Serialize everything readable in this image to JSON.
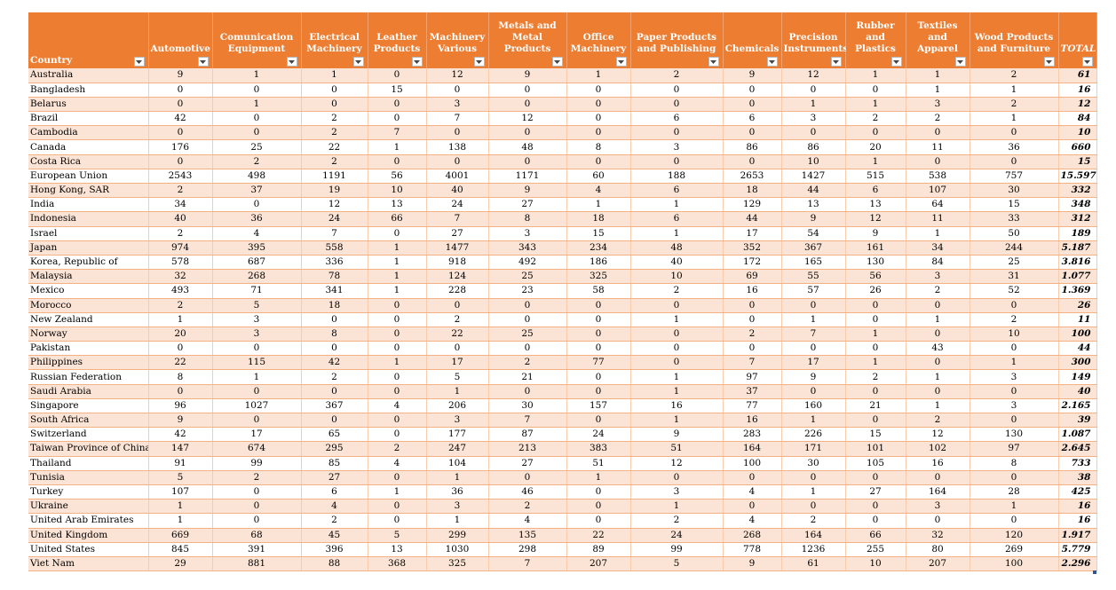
{
  "columns": [
    {
      "key": "country",
      "label": "Country"
    },
    {
      "key": "auto",
      "label": "Automotive"
    },
    {
      "key": "comm",
      "label": "Comunication Equipment"
    },
    {
      "key": "elec",
      "label": "Electrical Machinery"
    },
    {
      "key": "leather",
      "label": "Leather Products"
    },
    {
      "key": "mach",
      "label": "Machinery Various"
    },
    {
      "key": "metal",
      "label": "Metals and Metal Products"
    },
    {
      "key": "office",
      "label": "Office Machinery"
    },
    {
      "key": "paper",
      "label": "Paper Products and Publishing"
    },
    {
      "key": "chem",
      "label": "Chemicals"
    },
    {
      "key": "prec",
      "label": "Precision Instruments"
    },
    {
      "key": "rubber",
      "label": "Rubber and Plastics"
    },
    {
      "key": "textile",
      "label": "Textiles and Apparel"
    },
    {
      "key": "wood",
      "label": "Wood Products and Furniture"
    },
    {
      "key": "total",
      "label": "TOTAL"
    }
  ],
  "rows": [
    [
      "Australia",
      "9",
      "1",
      "1",
      "0",
      "12",
      "9",
      "1",
      "2",
      "9",
      "12",
      "1",
      "1",
      "2",
      "61"
    ],
    [
      "Bangladesh",
      "0",
      "0",
      "0",
      "15",
      "0",
      "0",
      "0",
      "0",
      "0",
      "0",
      "0",
      "1",
      "1",
      "16"
    ],
    [
      "Belarus",
      "0",
      "1",
      "0",
      "0",
      "3",
      "0",
      "0",
      "0",
      "0",
      "1",
      "1",
      "3",
      "2",
      "12"
    ],
    [
      "Brazil",
      "42",
      "0",
      "2",
      "0",
      "7",
      "12",
      "0",
      "6",
      "6",
      "3",
      "2",
      "2",
      "1",
      "84"
    ],
    [
      "Cambodia",
      "0",
      "0",
      "2",
      "7",
      "0",
      "0",
      "0",
      "0",
      "0",
      "0",
      "0",
      "0",
      "0",
      "10"
    ],
    [
      "Canada",
      "176",
      "25",
      "22",
      "1",
      "138",
      "48",
      "8",
      "3",
      "86",
      "86",
      "20",
      "11",
      "36",
      "660"
    ],
    [
      "Costa Rica",
      "0",
      "2",
      "2",
      "0",
      "0",
      "0",
      "0",
      "0",
      "0",
      "10",
      "1",
      "0",
      "0",
      "15"
    ],
    [
      "European Union",
      "2543",
      "498",
      "1191",
      "56",
      "4001",
      "1171",
      "60",
      "188",
      "2653",
      "1427",
      "515",
      "538",
      "757",
      "15.597"
    ],
    [
      "Hong Kong, SAR",
      "2",
      "37",
      "19",
      "10",
      "40",
      "9",
      "4",
      "6",
      "18",
      "44",
      "6",
      "107",
      "30",
      "332"
    ],
    [
      "India",
      "34",
      "0",
      "12",
      "13",
      "24",
      "27",
      "1",
      "1",
      "129",
      "13",
      "13",
      "64",
      "15",
      "348"
    ],
    [
      "Indonesia",
      "40",
      "36",
      "24",
      "66",
      "7",
      "8",
      "18",
      "6",
      "44",
      "9",
      "12",
      "11",
      "33",
      "312"
    ],
    [
      "Israel",
      "2",
      "4",
      "7",
      "0",
      "27",
      "3",
      "15",
      "1",
      "17",
      "54",
      "9",
      "1",
      "50",
      "189"
    ],
    [
      "Japan",
      "974",
      "395",
      "558",
      "1",
      "1477",
      "343",
      "234",
      "48",
      "352",
      "367",
      "161",
      "34",
      "244",
      "5.187"
    ],
    [
      "Korea, Republic of",
      "578",
      "687",
      "336",
      "1",
      "918",
      "492",
      "186",
      "40",
      "172",
      "165",
      "130",
      "84",
      "25",
      "3.816"
    ],
    [
      "Malaysia",
      "32",
      "268",
      "78",
      "1",
      "124",
      "25",
      "325",
      "10",
      "69",
      "55",
      "56",
      "3",
      "31",
      "1.077"
    ],
    [
      "Mexico",
      "493",
      "71",
      "341",
      "1",
      "228",
      "23",
      "58",
      "2",
      "16",
      "57",
      "26",
      "2",
      "52",
      "1.369"
    ],
    [
      "Morocco",
      "2",
      "5",
      "18",
      "0",
      "0",
      "0",
      "0",
      "0",
      "0",
      "0",
      "0",
      "0",
      "0",
      "26"
    ],
    [
      "New Zealand",
      "1",
      "3",
      "0",
      "0",
      "2",
      "0",
      "0",
      "1",
      "0",
      "1",
      "0",
      "1",
      "2",
      "11"
    ],
    [
      "Norway",
      "20",
      "3",
      "8",
      "0",
      "22",
      "25",
      "0",
      "0",
      "2",
      "7",
      "1",
      "0",
      "10",
      "100"
    ],
    [
      "Pakistan",
      "0",
      "0",
      "0",
      "0",
      "0",
      "0",
      "0",
      "0",
      "0",
      "0",
      "0",
      "43",
      "0",
      "44"
    ],
    [
      "Philippines",
      "22",
      "115",
      "42",
      "1",
      "17",
      "2",
      "77",
      "0",
      "7",
      "17",
      "1",
      "0",
      "1",
      "300"
    ],
    [
      "Russian Federation",
      "8",
      "1",
      "2",
      "0",
      "5",
      "21",
      "0",
      "1",
      "97",
      "9",
      "2",
      "1",
      "3",
      "149"
    ],
    [
      "Saudi Arabia",
      "0",
      "0",
      "0",
      "0",
      "1",
      "0",
      "0",
      "1",
      "37",
      "0",
      "0",
      "0",
      "0",
      "40"
    ],
    [
      "Singapore",
      "96",
      "1027",
      "367",
      "4",
      "206",
      "30",
      "157",
      "16",
      "77",
      "160",
      "21",
      "1",
      "3",
      "2.165"
    ],
    [
      "South Africa",
      "9",
      "0",
      "0",
      "0",
      "3",
      "7",
      "0",
      "1",
      "16",
      "1",
      "0",
      "2",
      "0",
      "39"
    ],
    [
      "Switzerland",
      "42",
      "17",
      "65",
      "0",
      "177",
      "87",
      "24",
      "9",
      "283",
      "226",
      "15",
      "12",
      "130",
      "1.087"
    ],
    [
      "Taiwan Province of China",
      "147",
      "674",
      "295",
      "2",
      "247",
      "213",
      "383",
      "51",
      "164",
      "171",
      "101",
      "102",
      "97",
      "2.645"
    ],
    [
      "Thailand",
      "91",
      "99",
      "85",
      "4",
      "104",
      "27",
      "51",
      "12",
      "100",
      "30",
      "105",
      "16",
      "8",
      "733"
    ],
    [
      "Tunisia",
      "5",
      "2",
      "27",
      "0",
      "1",
      "0",
      "1",
      "0",
      "0",
      "0",
      "0",
      "0",
      "0",
      "38"
    ],
    [
      "Turkey",
      "107",
      "0",
      "6",
      "1",
      "36",
      "46",
      "0",
      "3",
      "4",
      "1",
      "27",
      "164",
      "28",
      "425"
    ],
    [
      "Ukraine",
      "1",
      "0",
      "4",
      "0",
      "3",
      "2",
      "0",
      "1",
      "0",
      "0",
      "0",
      "3",
      "1",
      "16"
    ],
    [
      "United Arab Emirates",
      "1",
      "0",
      "2",
      "0",
      "1",
      "4",
      "0",
      "2",
      "4",
      "2",
      "0",
      "0",
      "0",
      "16"
    ],
    [
      "United Kingdom",
      "669",
      "68",
      "45",
      "5",
      "299",
      "135",
      "22",
      "24",
      "268",
      "164",
      "66",
      "32",
      "120",
      "1.917"
    ],
    [
      "United States",
      "845",
      "391",
      "396",
      "13",
      "1030",
      "298",
      "89",
      "99",
      "778",
      "1236",
      "255",
      "80",
      "269",
      "5.779"
    ],
    [
      "Viet Nam",
      "29",
      "881",
      "88",
      "368",
      "325",
      "7",
      "207",
      "5",
      "9",
      "61",
      "10",
      "207",
      "100",
      "2.296"
    ]
  ]
}
